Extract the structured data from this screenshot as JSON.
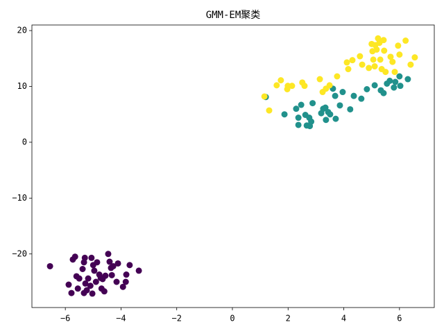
{
  "chart_data": {
    "type": "scatter",
    "title": "GMM-EM聚类",
    "xlim": [
      -7.2,
      7.25
    ],
    "ylim": [
      -29.6,
      21.0
    ],
    "xticks": [
      {
        "value": -6,
        "label": "−6"
      },
      {
        "value": -4,
        "label": "−4"
      },
      {
        "value": -2,
        "label": "−2"
      },
      0,
      2,
      4,
      6
    ],
    "yticks": [
      {
        "value": -20,
        "label": "−20"
      },
      {
        "value": -10,
        "label": "−10"
      },
      0,
      10,
      20
    ],
    "grid": false,
    "series": [
      {
        "color": "#440154",
        "x": [
          -6.55,
          -5.88,
          -5.78,
          -5.73,
          -5.65,
          -5.6,
          -5.5,
          -5.55,
          -5.38,
          -5.3,
          -5.33,
          -5.33,
          -5.28,
          -5.23,
          -5.18,
          -5.1,
          -5.06,
          -5.0,
          -4.96,
          -4.9,
          -4.86,
          -4.78,
          -4.73,
          -4.7,
          -4.66,
          -4.6,
          -4.56,
          -4.46,
          -4.41,
          -4.36,
          -4.33,
          -4.28,
          -4.16,
          -4.11,
          -3.93,
          -3.83,
          -3.81,
          -3.69,
          -3.36,
          -5.03
        ],
        "values": [
          -22.2,
          -25.5,
          -27.0,
          -21.0,
          -20.5,
          -24.0,
          -24.4,
          -26.2,
          -22.7,
          -20.7,
          -21.5,
          -27.0,
          -25.3,
          -26.5,
          -24.4,
          -25.7,
          -20.7,
          -22.0,
          -23.0,
          -25.0,
          -21.5,
          -23.7,
          -24.3,
          -26.2,
          -24.5,
          -26.7,
          -23.9,
          -20.0,
          -21.4,
          -22.5,
          -23.8,
          -22.2,
          -25.0,
          -21.7,
          -25.9,
          -25.0,
          -23.7,
          -22.0,
          -23.0,
          -27.1
        ]
      },
      {
        "color": "#21918c",
        "x": [
          1.2,
          1.87,
          2.29,
          2.37,
          2.37,
          2.47,
          2.62,
          2.67,
          2.76,
          2.78,
          2.83,
          2.88,
          3.19,
          3.26,
          3.34,
          3.36,
          3.44,
          3.51,
          3.61,
          3.69,
          3.71,
          3.86,
          3.96,
          4.23,
          4.36,
          4.63,
          4.83,
          5.11,
          5.33,
          5.43,
          5.55,
          5.65,
          5.8,
          5.85,
          6.0,
          6.03,
          6.3
        ],
        "values": [
          8.1,
          5.0,
          6.0,
          4.4,
          3.1,
          6.7,
          4.9,
          3.0,
          4.4,
          2.9,
          3.7,
          7.0,
          5.2,
          6.0,
          6.2,
          4.0,
          5.4,
          5.0,
          9.6,
          8.3,
          4.2,
          6.6,
          9.0,
          5.9,
          8.3,
          7.8,
          9.5,
          10.2,
          9.3,
          8.8,
          10.5,
          11.0,
          9.8,
          10.8,
          11.8,
          10.1,
          11.3
        ]
      },
      {
        "color": "#fde725",
        "x": [
          1.15,
          1.32,
          1.59,
          1.74,
          1.99,
          1.97,
          2.14,
          2.51,
          2.59,
          3.14,
          3.24,
          3.36,
          3.49,
          3.76,
          4.11,
          4.16,
          4.31,
          4.58,
          4.66,
          4.9,
          5.0,
          5.03,
          5.06,
          5.11,
          5.18,
          5.23,
          5.28,
          5.31,
          5.36,
          5.43,
          5.45,
          5.5,
          5.68,
          5.75,
          5.83,
          5.95,
          6.0,
          6.22,
          6.4,
          6.55,
          5.13
        ],
        "values": [
          8.2,
          5.7,
          10.2,
          11.1,
          10.1,
          9.5,
          10.1,
          10.7,
          10.1,
          11.3,
          9.0,
          9.6,
          10.2,
          11.8,
          14.3,
          13.1,
          14.7,
          15.4,
          13.9,
          13.3,
          17.6,
          16.3,
          14.8,
          13.6,
          16.6,
          18.6,
          17.8,
          14.8,
          13.1,
          18.3,
          16.4,
          12.6,
          15.3,
          14.4,
          12.6,
          17.3,
          15.7,
          18.2,
          13.9,
          15.2,
          17.4
        ]
      }
    ]
  }
}
